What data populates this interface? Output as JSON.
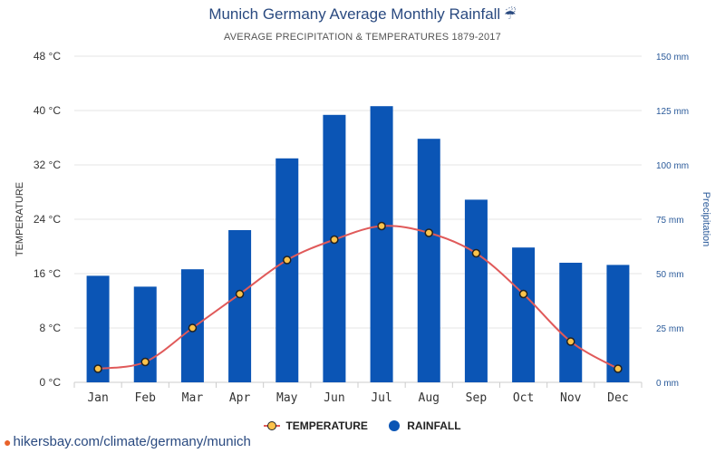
{
  "header": {
    "title": "Munich Germany Average Monthly Rainfall",
    "title_icon": "umbrella-rain-icon",
    "subtitle": "AVERAGE PRECIPITATION & TEMPERATURES 1879-2017"
  },
  "legend": {
    "temperature_label": "TEMPERATURE",
    "rainfall_label": "RAINFALL"
  },
  "footer": {
    "link_text": "hikersbay.com/climate/germany/munich",
    "icon": "map-pin-icon"
  },
  "colors": {
    "bar": "#0b55b5",
    "line": "#e05a5a",
    "marker_fill": "#fcc34b",
    "marker_stroke": "#222222",
    "grid": "#e6e6e6",
    "right_axis_text": "#2a5a9a"
  },
  "chart_data": {
    "type": "bar",
    "categories": [
      "Jan",
      "Feb",
      "Mar",
      "Apr",
      "May",
      "Jun",
      "Jul",
      "Aug",
      "Sep",
      "Oct",
      "Nov",
      "Dec"
    ],
    "series": [
      {
        "name": "RAINFALL",
        "type": "bar",
        "axis": "right",
        "values": [
          49,
          44,
          52,
          70,
          103,
          123,
          127,
          112,
          84,
          62,
          55,
          54
        ]
      },
      {
        "name": "TEMPERATURE",
        "type": "line",
        "axis": "left",
        "values": [
          2,
          3,
          8,
          13,
          18,
          21,
          23,
          22,
          19,
          13,
          6,
          2
        ]
      }
    ],
    "ylabel_left": "TEMPERATURE",
    "ylabel_right": "Precipitation",
    "ylim_left": [
      0,
      48
    ],
    "ylim_right": [
      0,
      150
    ],
    "yticks_left": [
      "0 °C",
      "8 °C",
      "16 °C",
      "24 °C",
      "32 °C",
      "40 °C",
      "48 °C"
    ],
    "yticks_right": [
      "0 mm",
      "25 mm",
      "50 mm",
      "75 mm",
      "100 mm",
      "125 mm",
      "150 mm"
    ],
    "grid": true,
    "legend_position": "bottom"
  }
}
